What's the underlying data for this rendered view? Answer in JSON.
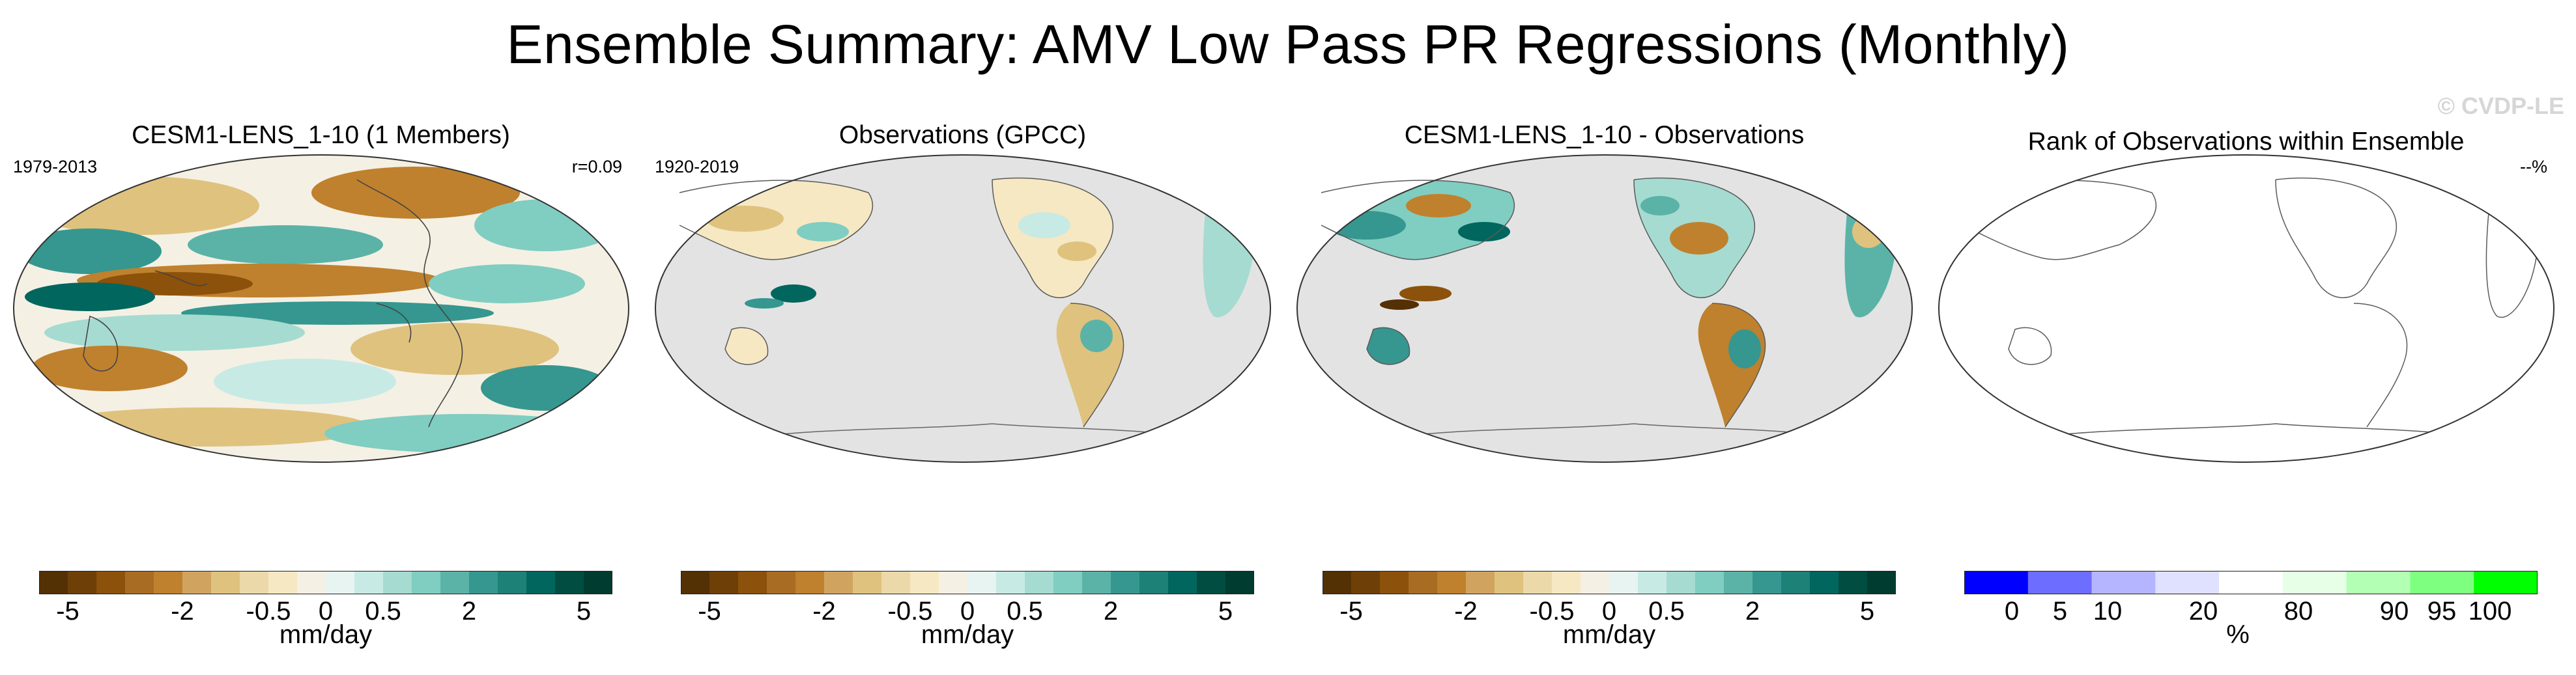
{
  "title": "Ensemble Summary: AMV Low Pass PR Regressions (Monthly)",
  "watermark": "© CVDP-LE",
  "panels": [
    {
      "title": "CESM1-LENS_1-10 (1 Members)",
      "left_label": "1979-2013",
      "right_label": "r=0.09",
      "map": "model-pattern"
    },
    {
      "title": "Observations (GPCC)",
      "left_label": "1920-2019",
      "right_label": "",
      "map": "obs-land-only"
    },
    {
      "title": "CESM1-LENS_1-10 - Observations",
      "left_label": "",
      "right_label": "",
      "map": "difference-land-only"
    },
    {
      "title": "Rank of Observations within Ensemble",
      "left_label": "",
      "right_label": "--%",
      "map": "empty"
    }
  ],
  "colorbars": {
    "brbg": {
      "units": "mm/day",
      "colors": [
        "#543005",
        "#6e4008",
        "#8c510a",
        "#a86c22",
        "#bf812d",
        "#d0a45f",
        "#dfc27d",
        "#ecd9aa",
        "#f6e8c3",
        "#f5f0e4",
        "#e8f4f2",
        "#c7eae5",
        "#a6dbd1",
        "#80cdc1",
        "#5bb3a7",
        "#35978f",
        "#1d8178",
        "#01665e",
        "#014d42",
        "#003c30"
      ],
      "tick_labels": [
        "-5",
        "-2",
        "-0.5",
        "0",
        "0.5",
        "2",
        "5"
      ],
      "tick_indices": [
        1,
        5,
        8,
        10,
        12,
        15,
        19
      ]
    },
    "rank": {
      "units": "%",
      "colors": [
        "#0000ff",
        "#6d6dff",
        "#b5b5ff",
        "#e0e0ff",
        "#ffffff",
        "#e6ffe6",
        "#b3ffb3",
        "#7fff7f",
        "#00ff00"
      ],
      "boundaries": [
        0,
        5,
        10,
        20,
        80,
        90,
        95,
        100
      ],
      "tick_labels": [
        "0",
        "5",
        "10",
        "20",
        "80",
        "90",
        "95",
        "100"
      ]
    }
  },
  "palette": {
    "ocean_masked": "#e3e3e3",
    "coastline": "#5a5a5a",
    "border": "#333333"
  }
}
